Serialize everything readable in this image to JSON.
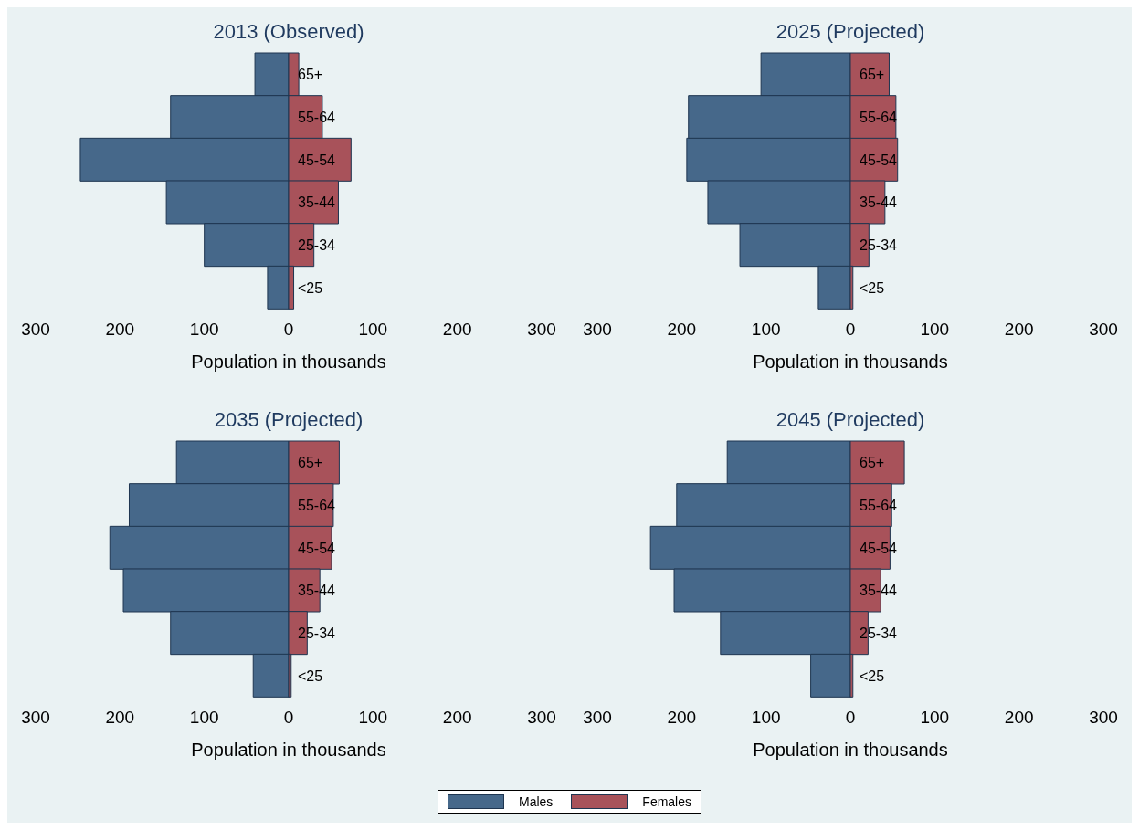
{
  "chart_data": [
    {
      "type": "bar",
      "orientation": "horizontal",
      "stacked": true,
      "title": "2013 (Observed)",
      "xlabel": "Population in thousands",
      "categories": [
        "65+",
        "55-64",
        "45-54",
        "35-44",
        "25-34",
        "<25"
      ],
      "xlim": [
        -300,
        300
      ],
      "xticks": [
        {
          "value": -300,
          "label": "300"
        },
        {
          "value": -200,
          "label": "200"
        },
        {
          "value": -100,
          "label": "100"
        },
        0,
        100,
        200,
        300
      ],
      "grid": false,
      "legend": "bottom",
      "series": [
        {
          "name": "Males",
          "color": "#46688a",
          "values": [
            -40,
            -140,
            -247,
            -145,
            -100,
            -25
          ]
        },
        {
          "name": "Females",
          "color": "#a8525a",
          "values": [
            12,
            40,
            74,
            59,
            30,
            6
          ]
        }
      ]
    },
    {
      "type": "bar",
      "orientation": "horizontal",
      "stacked": true,
      "title": "2025 (Projected)",
      "xlabel": "Population in thousands",
      "categories": [
        "65+",
        "55-64",
        "45-54",
        "35-44",
        "25-34",
        "<25"
      ],
      "xlim": [
        -300,
        300
      ],
      "xticks": [
        {
          "value": -300,
          "label": "300"
        },
        {
          "value": -200,
          "label": "200"
        },
        {
          "value": -100,
          "label": "100"
        },
        0,
        100,
        200,
        300
      ],
      "grid": false,
      "legend": "bottom",
      "series": [
        {
          "name": "Males",
          "color": "#46688a",
          "values": [
            -106,
            -192,
            -194,
            -169,
            -131,
            -38
          ]
        },
        {
          "name": "Females",
          "color": "#a8525a",
          "values": [
            46,
            54,
            56,
            41,
            22,
            3
          ]
        }
      ]
    },
    {
      "type": "bar",
      "orientation": "horizontal",
      "stacked": true,
      "title": "2035 (Projected)",
      "xlabel": "Population in thousands",
      "categories": [
        "65+",
        "55-64",
        "45-54",
        "35-44",
        "25-34",
        "<25"
      ],
      "xlim": [
        -300,
        300
      ],
      "xticks": [
        {
          "value": -300,
          "label": "300"
        },
        {
          "value": -200,
          "label": "200"
        },
        {
          "value": -100,
          "label": "100"
        },
        0,
        100,
        200,
        300
      ],
      "grid": false,
      "legend": "bottom",
      "series": [
        {
          "name": "Males",
          "color": "#46688a",
          "values": [
            -133,
            -189,
            -212,
            -196,
            -140,
            -42
          ]
        },
        {
          "name": "Females",
          "color": "#a8525a",
          "values": [
            60,
            53,
            51,
            37,
            22,
            3
          ]
        }
      ]
    },
    {
      "type": "bar",
      "orientation": "horizontal",
      "stacked": true,
      "title": "2045 (Projected)",
      "xlabel": "Population in thousands",
      "categories": [
        "65+",
        "55-64",
        "45-54",
        "35-44",
        "25-34",
        "<25"
      ],
      "xlim": [
        -300,
        300
      ],
      "xticks": [
        {
          "value": -300,
          "label": "300"
        },
        {
          "value": -200,
          "label": "200"
        },
        {
          "value": -100,
          "label": "100"
        },
        0,
        100,
        200,
        300
      ],
      "grid": false,
      "legend": "bottom",
      "series": [
        {
          "name": "Males",
          "color": "#46688a",
          "values": [
            -146,
            -206,
            -237,
            -209,
            -154,
            -47
          ]
        },
        {
          "name": "Females",
          "color": "#a8525a",
          "values": [
            64,
            49,
            47,
            36,
            21,
            3
          ]
        }
      ]
    }
  ]
}
